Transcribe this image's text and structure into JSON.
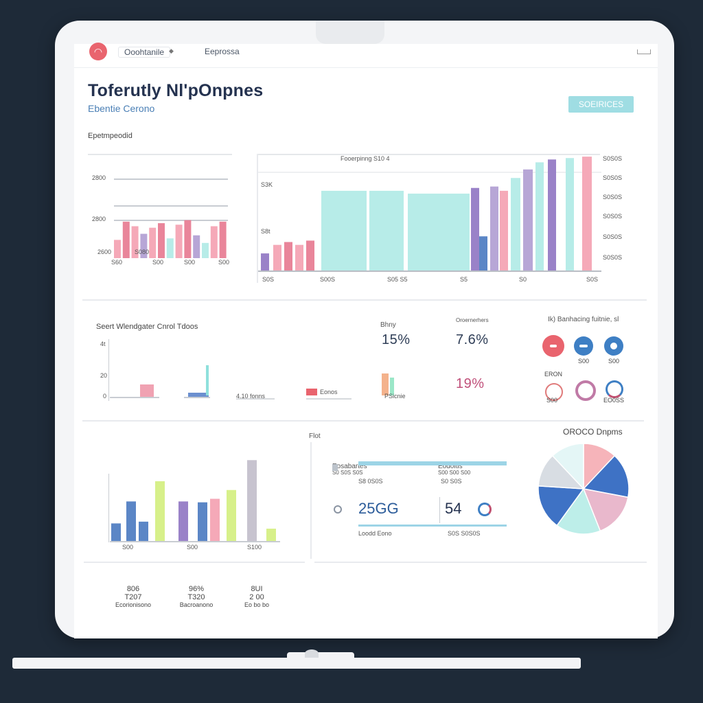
{
  "window": {
    "tabs": [
      "Ooohtanile",
      "Eeprossa"
    ],
    "title": "Toferutly Nl'pOnpnes",
    "subtitle": "Ebentie Cerono",
    "badge": "SOEIRICES"
  },
  "panel1": {
    "label": "Epetmpeodid",
    "y_ticks": [
      "2800",
      "2800",
      "2600"
    ],
    "x_ticks": [
      "S60",
      "S080",
      "S00",
      "S00",
      "S00"
    ]
  },
  "panel2": {
    "title": "Fooerpinng S10 4",
    "y_ticks_left": [
      "S3K",
      "S8t"
    ],
    "y_ticks_right": [
      "S0S0S",
      "S0S0S",
      "S0S0S",
      "S0S0S",
      "S0S0S",
      "S0S0S"
    ],
    "x_ticks": [
      "S0S",
      "S00S",
      "S05 S5",
      "S5",
      "S0",
      "S0S"
    ]
  },
  "panel3": {
    "title": "Seert Wlendgater Cnrol Tdoos",
    "y_ticks": [
      "4t",
      "20",
      "0"
    ],
    "captions": [
      "4.10 fonns",
      "Eonos"
    ]
  },
  "stats": {
    "stat1": {
      "label": "Bhny",
      "value": "15%",
      "caption": "PSicnie"
    },
    "stat2": {
      "label": "Oroernerhers",
      "value": "7.6%",
      "value2": "19%"
    }
  },
  "icons_panel": {
    "title": "Ik) Banhacing fuitnie, sl",
    "labels": [
      "S00",
      "S00",
      "S00",
      "S00",
      "ERON",
      "EO0SS"
    ],
    "colors": [
      "#e9646e",
      "#3e7fc4",
      "#3e7fc4"
    ]
  },
  "panel4": {
    "label": "Flot",
    "captions": [
      "S00",
      "S100"
    ]
  },
  "progress_panel": {
    "col1": {
      "title": "Eosabartes",
      "sub": "S0 S0S S0S",
      "foot": "S8 0S0S"
    },
    "col2": {
      "title": "Eodoitis",
      "sub": "S00 S00 S00",
      "foot": "S0 S0S"
    },
    "num1": "25GG",
    "num2": "54",
    "cap1": "Loodd Eono",
    "cap2": "S0S S0S0S"
  },
  "pie": {
    "title": "OROCO Dnpms",
    "slices": [
      {
        "value": 12,
        "color": "#f6b4ba"
      },
      {
        "value": 16,
        "color": "#3e72c5"
      },
      {
        "value": 16,
        "color": "#e9b8cc"
      },
      {
        "value": 16,
        "color": "#bdeee9"
      },
      {
        "value": 16,
        "color": "#3e72c5"
      },
      {
        "value": 12,
        "color": "#d8dde3"
      },
      {
        "value": 12,
        "color": "#e4f6f6"
      }
    ]
  },
  "footer": [
    {
      "v": "806",
      "v2": "T207",
      "cap": "Ecorionisono"
    },
    {
      "v": "96%",
      "v2": "T320",
      "cap": "Bacroanono"
    },
    {
      "v": "8UI",
      "v2": "2 00",
      "cap": "Eo bo bo"
    }
  ],
  "colors": {
    "pink": "#f5a9b8",
    "rose": "#e9859a",
    "lavender": "#b7a6d6",
    "purple": "#9a82c8",
    "mint": "#b7ece8",
    "blue": "#5b86c6",
    "lime": "#d7f08a",
    "grey": "#c7c3cf"
  },
  "chart_data": [
    {
      "type": "bar",
      "title": "",
      "values": [
        1.2,
        2.4,
        2.1,
        1.6,
        2.0,
        2.3,
        1.3,
        2.2,
        2.5,
        1.5,
        1.0,
        2.1,
        2.4
      ]
    },
    {
      "type": "bar",
      "title": "Fooerpinng S10 4",
      "values": [
        1.2,
        5.6,
        5.6,
        5.4,
        5.8,
        5.9,
        6.5,
        7.1,
        7.6,
        7.8,
        7.9,
        8.0
      ]
    },
    {
      "type": "bar",
      "title": "",
      "values": [
        2.0,
        4.5,
        2.2,
        6.8,
        4.5,
        4.4,
        4.8,
        5.8,
        9.2,
        1.4
      ]
    },
    {
      "type": "pie",
      "title": "OROCO Dnpms",
      "values": [
        12,
        16,
        16,
        16,
        16,
        12,
        12
      ]
    }
  ]
}
